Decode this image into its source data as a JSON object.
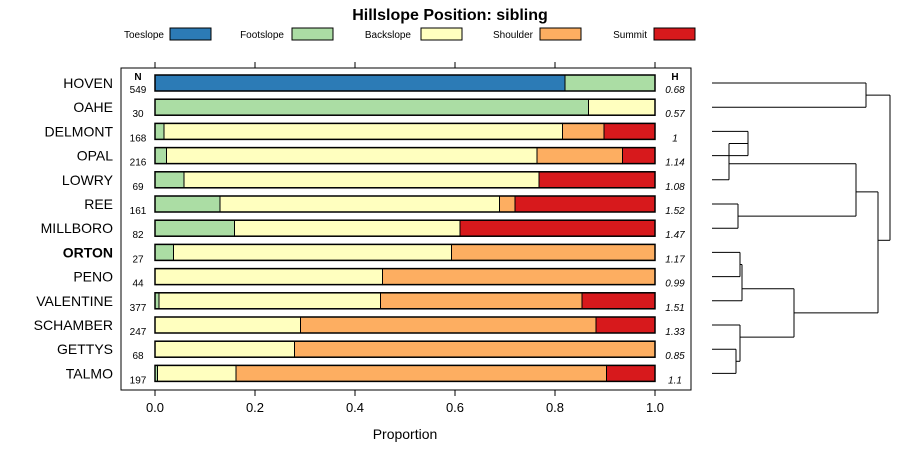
{
  "chart_data": {
    "type": "bar",
    "orientation": "horizontal-stacked",
    "title": "Hillslope Position: sibling",
    "xlabel": "Proportion",
    "xlim": [
      0,
      1
    ],
    "xticks": [
      "0.0",
      "0.2",
      "0.4",
      "0.6",
      "0.8",
      "1.0"
    ],
    "n_header": "N",
    "h_header": "H",
    "legend_position": "top",
    "series": [
      {
        "name": "Toeslope",
        "color": "#2c7bb6"
      },
      {
        "name": "Footslope",
        "color": "#abdda4"
      },
      {
        "name": "Backslope",
        "color": "#ffffbf"
      },
      {
        "name": "Shoulder",
        "color": "#fdae61"
      },
      {
        "name": "Summit",
        "color": "#d7191c"
      }
    ],
    "rows": [
      {
        "label": "HOVEN",
        "n": "549",
        "h": "0.68",
        "bold": false,
        "values": [
          0.82,
          0.18,
          0,
          0,
          0
        ]
      },
      {
        "label": "OAHE",
        "n": "30",
        "h": "0.57",
        "bold": false,
        "values": [
          0,
          0.867,
          0.133,
          0,
          0
        ]
      },
      {
        "label": "DELMONT",
        "n": "168",
        "h": "1",
        "bold": false,
        "values": [
          0,
          0.018,
          0.797,
          0.083,
          0.102
        ]
      },
      {
        "label": "OPAL",
        "n": "216",
        "h": "1.14",
        "bold": false,
        "values": [
          0,
          0.023,
          0.741,
          0.171,
          0.065
        ]
      },
      {
        "label": "LOWRY",
        "n": "69",
        "h": "1.08",
        "bold": false,
        "values": [
          0,
          0.058,
          0.71,
          0,
          0.232
        ]
      },
      {
        "label": "REE",
        "n": "161",
        "h": "1.52",
        "bold": false,
        "values": [
          0,
          0.13,
          0.559,
          0.031,
          0.28
        ]
      },
      {
        "label": "MILLBORO",
        "n": "82",
        "h": "1.47",
        "bold": false,
        "values": [
          0,
          0.159,
          0.451,
          0,
          0.39
        ]
      },
      {
        "label": "ORTON",
        "n": "27",
        "h": "1.17",
        "bold": true,
        "values": [
          0,
          0.037,
          0.556,
          0.407,
          0
        ]
      },
      {
        "label": "PENO",
        "n": "44",
        "h": "0.99",
        "bold": false,
        "values": [
          0,
          0,
          0.455,
          0.545,
          0
        ]
      },
      {
        "label": "VALENTINE",
        "n": "377",
        "h": "1.51",
        "bold": false,
        "values": [
          0,
          0.008,
          0.443,
          0.403,
          0.146
        ]
      },
      {
        "label": "SCHAMBER",
        "n": "247",
        "h": "1.33",
        "bold": false,
        "values": [
          0,
          0,
          0.291,
          0.591,
          0.118
        ]
      },
      {
        "label": "GETTYS",
        "n": "68",
        "h": "0.85",
        "bold": false,
        "values": [
          0,
          0,
          0.279,
          0.721,
          0
        ]
      },
      {
        "label": "TALMO",
        "n": "197",
        "h": "1.1",
        "bold": false,
        "values": [
          0,
          0.005,
          0.157,
          0.741,
          0.097
        ]
      }
    ]
  }
}
